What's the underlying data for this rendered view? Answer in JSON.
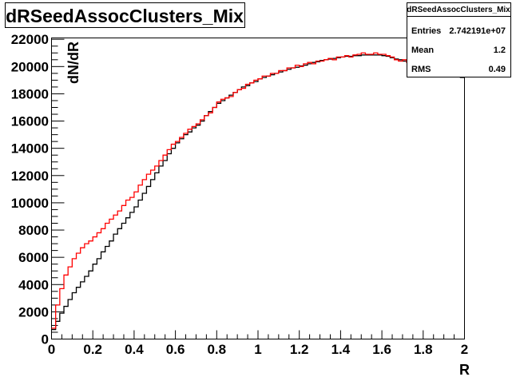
{
  "chart_data": {
    "type": "histogram-step",
    "title": "dRSeedAssocClusters_Mix",
    "xlabel": "R",
    "ylabel": "dN/dR",
    "xlim": [
      0,
      2
    ],
    "ylim": [
      0,
      22100
    ],
    "bins": 100,
    "bin_width": 0.02,
    "x_ticks": [
      "0",
      "0.2",
      "0.4",
      "0.6",
      "0.8",
      "1",
      "1.2",
      "1.4",
      "1.6",
      "1.8",
      "2"
    ],
    "y_ticks": [
      "0",
      "2000",
      "4000",
      "6000",
      "8000",
      "10000",
      "12000",
      "14000",
      "16000",
      "18000",
      "20000",
      "22000"
    ],
    "series": [
      {
        "name": "black",
        "color": "#000000",
        "values": [
          700,
          1300,
          1900,
          2400,
          2900,
          3400,
          3800,
          4200,
          4600,
          5000,
          5500,
          5900,
          6400,
          6800,
          7200,
          7700,
          8100,
          8500,
          8900,
          9300,
          9700,
          10200,
          10700,
          11200,
          11700,
          12200,
          12700,
          13100,
          13600,
          14000,
          14400,
          14700,
          15000,
          15200,
          15500,
          15700,
          16000,
          16400,
          16700,
          17000,
          17300,
          17500,
          17700,
          17900,
          18100,
          18300,
          18500,
          18600,
          18800,
          18900,
          19100,
          19200,
          19300,
          19400,
          19500,
          19600,
          19700,
          19800,
          19900,
          19950,
          20050,
          20100,
          20200,
          20300,
          20350,
          20450,
          20500,
          20550,
          20600,
          20650,
          20700,
          20750,
          20750,
          20800,
          20800,
          20850,
          20850,
          20850,
          20850,
          20850,
          20800,
          20750,
          20650,
          20550,
          20500,
          20400,
          20300,
          20200,
          20100,
          20000,
          19950,
          19850,
          19750,
          19700,
          19600,
          19500,
          19450,
          19350,
          19300,
          19200
        ]
      },
      {
        "name": "red",
        "color": "#ff0000",
        "values": [
          800,
          2500,
          3700,
          4700,
          5300,
          5900,
          6300,
          6700,
          7000,
          7200,
          7500,
          7800,
          8100,
          8500,
          8800,
          9100,
          9400,
          9800,
          10200,
          10400,
          10800,
          11300,
          11700,
          12100,
          12400,
          12700,
          13100,
          13500,
          13900,
          14300,
          14500,
          14800,
          15100,
          15400,
          15600,
          15800,
          16100,
          16400,
          16600,
          17000,
          17400,
          17600,
          17700,
          17800,
          18100,
          18300,
          18400,
          18700,
          18800,
          19000,
          19100,
          19300,
          19300,
          19500,
          19500,
          19700,
          19700,
          19900,
          19900,
          20100,
          20000,
          20200,
          20300,
          20200,
          20400,
          20400,
          20500,
          20600,
          20500,
          20700,
          20700,
          20800,
          20700,
          20850,
          20900,
          21000,
          20900,
          20900,
          21000,
          20900,
          20900,
          20800,
          20700,
          20500,
          20400,
          20500,
          20300,
          20200,
          20000,
          20000,
          19900,
          19800,
          19800,
          19600,
          19700,
          19500,
          19600,
          19400,
          19300,
          19300
        ]
      }
    ],
    "stats": {
      "title": "dRSeedAssocClusters_Mix",
      "rows": [
        {
          "label": "Entries",
          "value": "2.742191e+07"
        },
        {
          "label": "Mean",
          "value": "1.2"
        },
        {
          "label": "RMS",
          "value": "0.49"
        }
      ]
    }
  }
}
